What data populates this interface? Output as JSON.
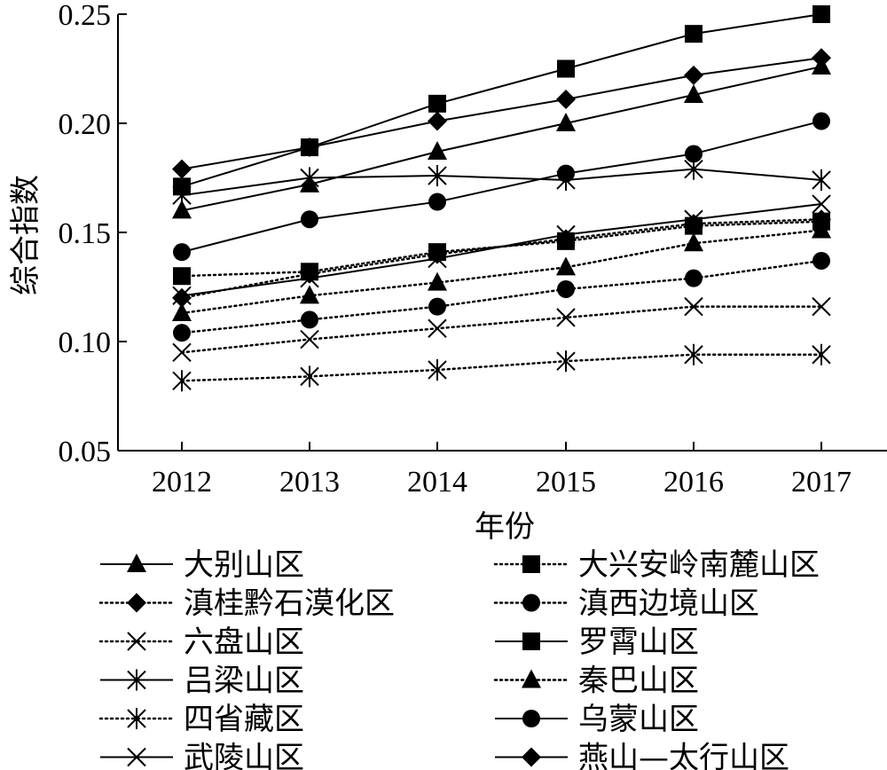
{
  "chart_data": {
    "type": "line",
    "xlabel": "年份",
    "ylabel": "综合指数",
    "x": [
      "2012",
      "2013",
      "2014",
      "2015",
      "2016",
      "2017"
    ],
    "ylim": [
      0.05,
      0.25
    ],
    "yticks": [
      "0.05",
      "0.10",
      "0.15",
      "0.20",
      "0.25"
    ],
    "grid": false,
    "legend_position": "bottom, two columns",
    "series": [
      {
        "name": "大别山区",
        "line": "solid",
        "marker": "triangle",
        "values": [
          0.16,
          0.172,
          0.187,
          0.2,
          0.213,
          0.226
        ]
      },
      {
        "name": "大兴安岭南麓山区",
        "line": "dotted",
        "marker": "square",
        "values": [
          0.13,
          0.132,
          0.141,
          0.146,
          0.153,
          0.155
        ]
      },
      {
        "name": "滇桂黔石漠化区",
        "line": "dotted",
        "marker": "diamond",
        "values": [
          0.12,
          0.131,
          0.14,
          0.147,
          0.154,
          0.156
        ]
      },
      {
        "name": "滇西边境山区",
        "line": "dotted",
        "marker": "circle",
        "values": [
          0.104,
          0.11,
          0.116,
          0.124,
          0.129,
          0.137
        ]
      },
      {
        "name": "六盘山区",
        "line": "dotted",
        "marker": "x",
        "values": [
          0.095,
          0.101,
          0.106,
          0.111,
          0.116,
          0.116
        ]
      },
      {
        "name": "罗霄山区",
        "line": "solid",
        "marker": "square",
        "values": [
          0.171,
          0.189,
          0.209,
          0.225,
          0.241,
          0.25
        ]
      },
      {
        "name": "吕梁山区",
        "line": "solid",
        "marker": "asterisk",
        "values": [
          0.167,
          0.175,
          0.176,
          0.174,
          0.179,
          0.174
        ]
      },
      {
        "name": "秦巴山区",
        "line": "dotted",
        "marker": "triangle",
        "values": [
          0.113,
          0.121,
          0.127,
          0.134,
          0.145,
          0.151
        ]
      },
      {
        "name": "四省藏区",
        "line": "dotted",
        "marker": "asterisk",
        "values": [
          0.082,
          0.084,
          0.087,
          0.091,
          0.094,
          0.094
        ]
      },
      {
        "name": "乌蒙山区",
        "line": "solid",
        "marker": "circle",
        "values": [
          0.141,
          0.156,
          0.164,
          0.177,
          0.186,
          0.201
        ]
      },
      {
        "name": "武陵山区",
        "line": "solid",
        "marker": "x",
        "values": [
          0.121,
          0.129,
          0.138,
          0.149,
          0.156,
          0.163
        ]
      },
      {
        "name": "燕山—太行山区",
        "line": "solid",
        "marker": "diamond",
        "values": [
          0.179,
          0.189,
          0.201,
          0.211,
          0.222,
          0.23
        ]
      }
    ]
  }
}
